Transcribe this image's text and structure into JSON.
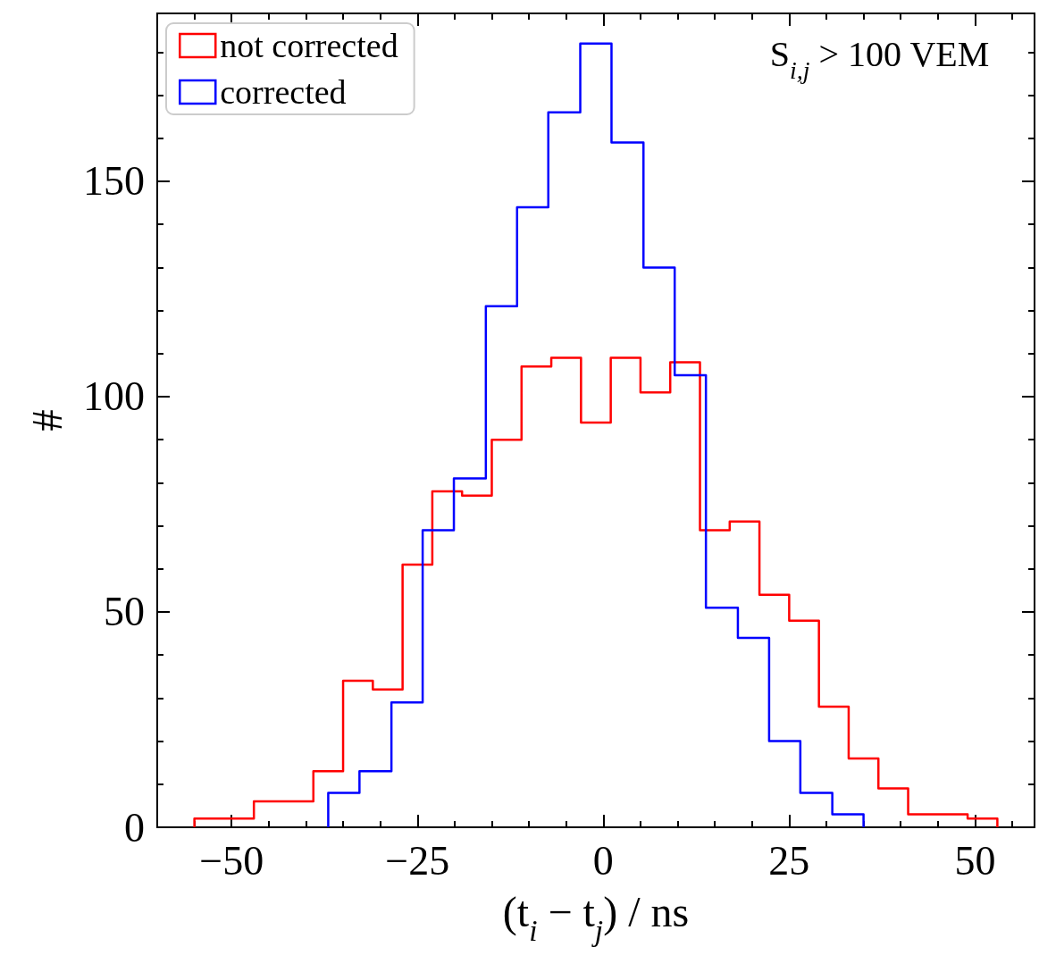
{
  "chart_data": {
    "type": "step",
    "xlabel": "(t$_{i}$ − t$_{j}$) / ns",
    "ylabel": "#",
    "annotations": [
      "S$_{i,j}$ > 100 VEM"
    ],
    "series": [
      {
        "name": "not corrected",
        "color": "#ff0000",
        "x": [
          -55,
          -55,
          -51,
          -47,
          -43,
          -39,
          -35,
          -31,
          -27,
          -23,
          -19,
          -15,
          -11,
          -7,
          -3,
          1,
          5,
          9,
          13,
          17,
          21,
          25,
          29,
          33,
          37,
          41,
          45,
          49,
          53,
          53
        ],
        "values": [
          0,
          2,
          2,
          6,
          6,
          13,
          34,
          32,
          61,
          78,
          77,
          90,
          107,
          109,
          94,
          109,
          101,
          108,
          69,
          71,
          54,
          48,
          28,
          16,
          9,
          3,
          3,
          2,
          2,
          0
        ]
      },
      {
        "name": "corrected",
        "color": "#0000ff",
        "x": [
          -37,
          -37,
          -32.8,
          -28.5,
          -24.3,
          -20.1,
          -15.8,
          -11.6,
          -7.4,
          -3.1,
          1.1,
          5.4,
          9.6,
          13.8,
          18.1,
          22.3,
          26.5,
          30.8,
          35,
          35
        ],
        "values": [
          0,
          8,
          13,
          29,
          69,
          81,
          121,
          144,
          166,
          182,
          159,
          130,
          105,
          51,
          44,
          20,
          8,
          3,
          3,
          0
        ]
      }
    ],
    "xlim": [
      -60,
      58
    ],
    "ylim": [
      0,
      189
    ],
    "xticks": [
      {
        "value": -50,
        "label": "−50"
      },
      {
        "value": -25,
        "label": "−25"
      },
      0,
      25,
      50,
      {
        "value": -55,
        "label": null
      },
      {
        "value": -45,
        "label": null
      },
      {
        "value": -40,
        "label": null
      },
      {
        "value": -35,
        "label": null
      },
      {
        "value": -30,
        "label": null
      },
      {
        "value": -20,
        "label": null
      },
      {
        "value": -15,
        "label": null
      },
      {
        "value": -10,
        "label": null
      },
      {
        "value": -5,
        "label": null
      },
      {
        "value": 5,
        "label": null
      },
      {
        "value": 10,
        "label": null
      },
      {
        "value": 15,
        "label": null
      },
      {
        "value": 20,
        "label": null
      },
      {
        "value": 30,
        "label": null
      },
      {
        "value": 35,
        "label": null
      },
      {
        "value": 40,
        "label": null
      },
      {
        "value": 45,
        "label": null
      },
      {
        "value": 55,
        "label": null
      }
    ],
    "yticks": [
      0,
      50,
      100,
      150,
      {
        "value": 10,
        "label": null
      },
      {
        "value": 20,
        "label": null
      },
      {
        "value": 30,
        "label": null
      },
      {
        "value": 40,
        "label": null
      },
      {
        "value": 60,
        "label": null
      },
      {
        "value": 70,
        "label": null
      },
      {
        "value": 80,
        "label": null
      },
      {
        "value": 90,
        "label": null
      },
      {
        "value": 110,
        "label": null
      },
      {
        "value": 120,
        "label": null
      },
      {
        "value": 130,
        "label": null
      },
      {
        "value": 140,
        "label": null
      },
      {
        "value": 160,
        "label": null
      },
      {
        "value": 170,
        "label": null
      },
      {
        "value": 180,
        "label": null
      }
    ],
    "grid": false,
    "legend": "top left"
  }
}
